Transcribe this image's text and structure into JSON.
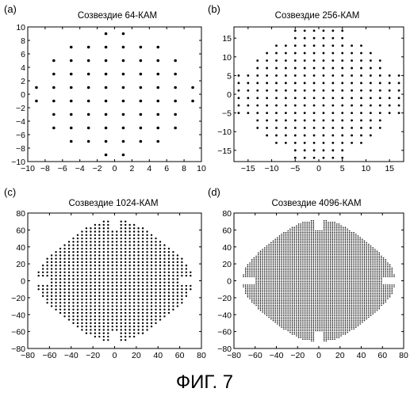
{
  "figure": {
    "caption": "ФИГ. 7"
  },
  "chart_data": [
    {
      "type": "scatter",
      "panel_letter": "(a)",
      "title": "Созвездие 64-КАМ",
      "constellation_order": 64,
      "xlim": [
        -10,
        10
      ],
      "ylim": [
        -10,
        10
      ],
      "xticks": [
        -10,
        -8,
        -6,
        -4,
        -2,
        0,
        2,
        4,
        6,
        8,
        10
      ],
      "yticks": [
        -10,
        -8,
        -6,
        -4,
        -2,
        0,
        2,
        4,
        6,
        8,
        10
      ],
      "grid": false,
      "point_count": 64,
      "points": [
        [
          -1,
          9
        ],
        [
          1,
          9
        ],
        [
          -1,
          -9
        ],
        [
          1,
          -9
        ],
        [
          -9,
          1
        ],
        [
          -9,
          -1
        ],
        [
          9,
          1
        ],
        [
          9,
          -1
        ],
        [
          -7,
          5
        ],
        [
          -7,
          3
        ],
        [
          -7,
          1
        ],
        [
          -7,
          -1
        ],
        [
          -7,
          -3
        ],
        [
          -7,
          -5
        ],
        [
          -5,
          7
        ],
        [
          -5,
          5
        ],
        [
          -5,
          3
        ],
        [
          -5,
          1
        ],
        [
          -5,
          -1
        ],
        [
          -5,
          -3
        ],
        [
          -5,
          -5
        ],
        [
          -5,
          -7
        ],
        [
          -3,
          7
        ],
        [
          -3,
          5
        ],
        [
          -3,
          3
        ],
        [
          -3,
          1
        ],
        [
          -3,
          -1
        ],
        [
          -3,
          -3
        ],
        [
          -3,
          -5
        ],
        [
          -3,
          -7
        ],
        [
          -1,
          7
        ],
        [
          -1,
          5
        ],
        [
          -1,
          3
        ],
        [
          -1,
          1
        ],
        [
          -1,
          -1
        ],
        [
          -1,
          -3
        ],
        [
          -1,
          -5
        ],
        [
          -1,
          -7
        ],
        [
          1,
          7
        ],
        [
          1,
          5
        ],
        [
          1,
          3
        ],
        [
          1,
          1
        ],
        [
          1,
          -1
        ],
        [
          1,
          -3
        ],
        [
          1,
          -5
        ],
        [
          1,
          -7
        ],
        [
          3,
          7
        ],
        [
          3,
          5
        ],
        [
          3,
          3
        ],
        [
          3,
          1
        ],
        [
          3,
          -1
        ],
        [
          3,
          -3
        ],
        [
          3,
          -5
        ],
        [
          3,
          -7
        ],
        [
          5,
          7
        ],
        [
          5,
          5
        ],
        [
          5,
          3
        ],
        [
          5,
          1
        ],
        [
          5,
          -1
        ],
        [
          5,
          -3
        ],
        [
          5,
          -5
        ],
        [
          5,
          -7
        ],
        [
          7,
          5
        ],
        [
          7,
          3
        ],
        [
          7,
          1
        ],
        [
          7,
          -1
        ],
        [
          7,
          -3
        ],
        [
          7,
          -5
        ]
      ]
    },
    {
      "type": "scatter",
      "panel_letter": "(b)",
      "title": "Созвездие 256-КАМ",
      "constellation_order": 256,
      "xlim": [
        -18,
        18
      ],
      "ylim": [
        -18,
        18
      ],
      "xticks": [
        -15,
        -10,
        -5,
        0,
        5,
        10,
        15
      ],
      "yticks": [
        -15,
        -10,
        -5,
        0,
        5,
        10,
        15
      ],
      "grid": false,
      "point_count": 256,
      "points": "odd-integer grid, cross-shaped outline: |x|<=13 & |y|<=13 with corners clipped, plus protrusions along each axis to |17| (x within ±5 / y within ±5)"
    },
    {
      "type": "scatter",
      "panel_letter": "(c)",
      "title": "Созвездие 1024-КАМ",
      "constellation_order": 1024,
      "xlim": [
        -80,
        80
      ],
      "ylim": [
        -80,
        80
      ],
      "xticks": [
        -80,
        -60,
        -40,
        -20,
        0,
        20,
        40,
        60,
        80
      ],
      "yticks": [
        -80,
        -60,
        -40,
        -20,
        0,
        20,
        40,
        60,
        80
      ],
      "grid": false,
      "point_count": 1024,
      "points": "odd-integer grid scaled ×2 spacing, roughly circular outline radius ~72 with notches near x=0,y=±70 and y=0,x=±70"
    },
    {
      "type": "scatter",
      "panel_letter": "(d)",
      "title": "Созвездие 4096-КАМ",
      "constellation_order": 4096,
      "xlim": [
        -80,
        80
      ],
      "ylim": [
        -80,
        80
      ],
      "xticks": [
        -80,
        -60,
        -40,
        -20,
        0,
        20,
        40,
        60,
        80
      ],
      "yticks": [
        -80,
        -60,
        -40,
        -20,
        0,
        20,
        40,
        60,
        80
      ],
      "grid": false,
      "point_count": 4096,
      "points": "dense odd-integer grid, roughly circular outline radius ~72 with notches near x=0,y=±70 and y=0,x=±70"
    }
  ]
}
